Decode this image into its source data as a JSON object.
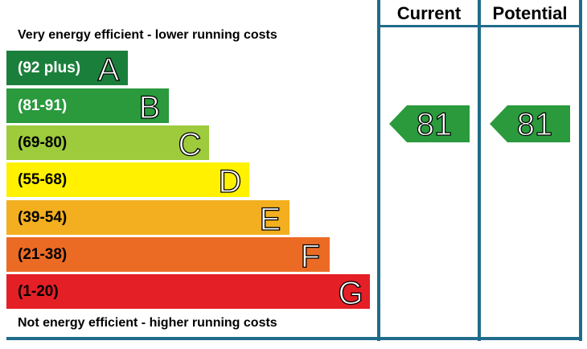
{
  "headers": {
    "current": "Current",
    "potential": "Potential"
  },
  "captions": {
    "top": "Very energy efficient - lower running costs",
    "bottom": "Not energy efficient - higher running costs"
  },
  "bands": [
    {
      "range": "(92 plus)",
      "letter": "A",
      "color": "#1b7f3c",
      "text_color": "#ffffff"
    },
    {
      "range": "(81-91)",
      "letter": "B",
      "color": "#2a9a3d",
      "text_color": "#ffffff"
    },
    {
      "range": "(69-80)",
      "letter": "C",
      "color": "#9dcb3c",
      "text_color": "#000000"
    },
    {
      "range": "(55-68)",
      "letter": "D",
      "color": "#fff100",
      "text_color": "#000000"
    },
    {
      "range": "(39-54)",
      "letter": "E",
      "color": "#f3af1f",
      "text_color": "#000000"
    },
    {
      "range": "(21-38)",
      "letter": "F",
      "color": "#ec6b24",
      "text_color": "#000000"
    },
    {
      "range": "(1-20)",
      "letter": "G",
      "color": "#e41f26",
      "text_color": "#000000"
    }
  ],
  "current": {
    "value": "81",
    "color": "#2a9a3d"
  },
  "potential": {
    "value": "81",
    "color": "#2a9a3d"
  },
  "frame_color": "#1f6c8a"
}
